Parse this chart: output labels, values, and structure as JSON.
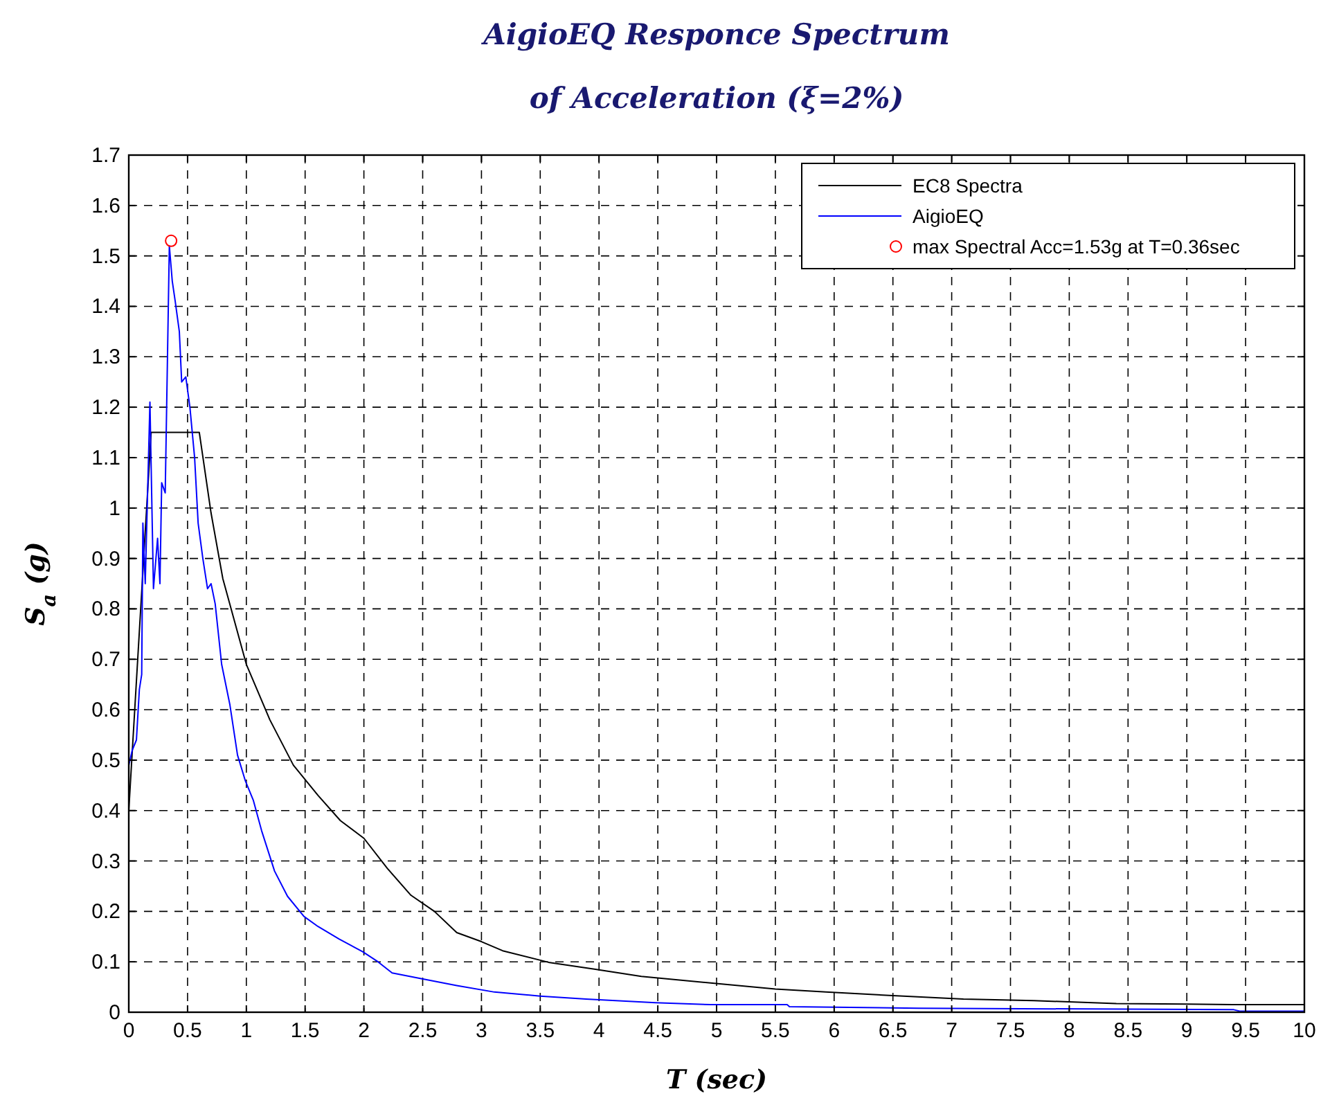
{
  "chart_data": {
    "type": "line",
    "title": "AigioEQ Responce Spectrum\nof Acceleration (ξ=2%)",
    "xlabel": "T (sec)",
    "ylabel": "S$_{a}$ (g)",
    "xlim": [
      0,
      10
    ],
    "ylim": [
      0,
      1.7
    ],
    "xticks": [
      0,
      0.5,
      1,
      1.5,
      2,
      2.5,
      3,
      3.5,
      4,
      4.5,
      5,
      5.5,
      6,
      6.5,
      7,
      7.5,
      8,
      8.5,
      9,
      9.5,
      10
    ],
    "yticks": [
      0,
      0.1,
      0.2,
      0.3,
      0.4,
      0.5,
      0.6,
      0.7,
      0.8,
      0.9,
      1,
      1.1,
      1.2,
      1.3,
      1.4,
      1.5,
      1.6,
      1.7
    ],
    "grid": true,
    "legend": "top right",
    "line_style": "solid",
    "series": [
      {
        "name": "EC8 Spectra",
        "color": "#000000",
        "x": [
          0,
          0.19,
          0.6,
          0.7,
          0.8,
          1,
          1.2,
          1.4,
          1.61,
          1.8,
          2,
          2.2,
          2.4,
          2.6,
          2.79,
          3,
          3.18,
          3.57,
          3.97,
          4.36,
          4.95,
          5.5,
          5.93,
          6.5,
          7.1,
          7.7,
          8.4,
          9,
          9.39,
          10
        ],
        "values": [
          0.4,
          1.15,
          1.15,
          0.99,
          0.86,
          0.69,
          0.58,
          0.49,
          0.43,
          0.38,
          0.345,
          0.285,
          0.232,
          0.2,
          0.158,
          0.14,
          0.122,
          0.099,
          0.085,
          0.071,
          0.058,
          0.046,
          0.04,
          0.033,
          0.026,
          0.023,
          0.017,
          0.016,
          0.015,
          0.015
        ]
      },
      {
        "name": "AigioEQ",
        "color": "#0000ff",
        "x": [
          0,
          0.03,
          0.065,
          0.09,
          0.11,
          0.12,
          0.14,
          0.18,
          0.21,
          0.245,
          0.265,
          0.28,
          0.31,
          0.345,
          0.37,
          0.395,
          0.43,
          0.45,
          0.485,
          0.52,
          0.56,
          0.59,
          0.63,
          0.67,
          0.7,
          0.735,
          0.79,
          0.86,
          0.925,
          0.99,
          1.06,
          1.13,
          1.24,
          1.35,
          1.49,
          1.61,
          1.79,
          1.99,
          2.12,
          2.24,
          2.48,
          2.79,
          3.11,
          3.5,
          3.89,
          4.48,
          4.95,
          5.6,
          5.62,
          6.72,
          9.4,
          9.45,
          10
        ],
        "values": [
          0.49,
          0.52,
          0.54,
          0.64,
          0.67,
          0.97,
          0.85,
          1.21,
          0.84,
          0.94,
          0.85,
          1.05,
          1.03,
          1.52,
          1.45,
          1.41,
          1.35,
          1.25,
          1.26,
          1.2,
          1.1,
          0.97,
          0.9,
          0.84,
          0.85,
          0.81,
          0.69,
          0.61,
          0.51,
          0.46,
          0.42,
          0.36,
          0.28,
          0.23,
          0.19,
          0.17,
          0.145,
          0.12,
          0.1,
          0.078,
          0.067,
          0.053,
          0.04,
          0.032,
          0.026,
          0.019,
          0.015,
          0.015,
          0.011,
          0.008,
          0.005,
          0.002,
          0.002
        ]
      },
      {
        "name": "max Spectral Acc=1.53g at T=0.36sec",
        "type": "scatter",
        "marker": "circle",
        "color": "#ff0000",
        "x": [
          0.36
        ],
        "values": [
          1.53
        ]
      }
    ]
  }
}
